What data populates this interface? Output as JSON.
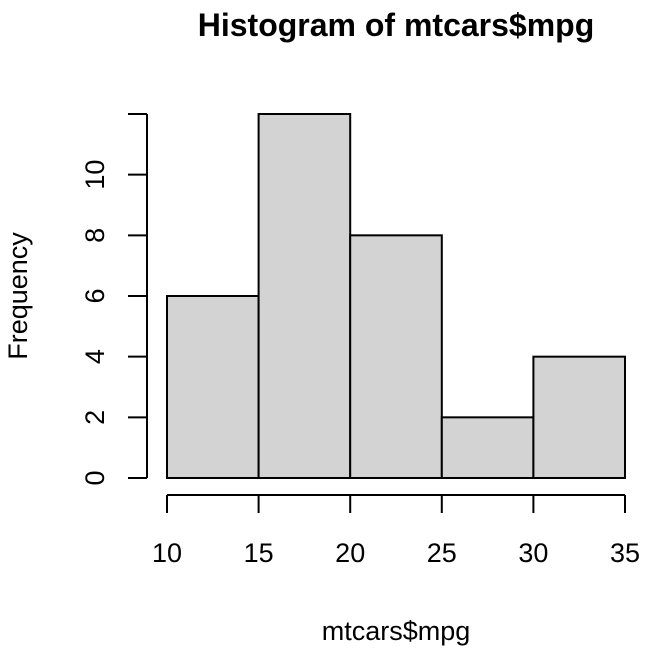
{
  "chart_data": {
    "type": "bar",
    "title": "Histogram of mtcars$mpg",
    "xlabel": "mtcars$mpg",
    "ylabel": "Frequency",
    "bins": [
      {
        "start": 10,
        "end": 15,
        "count": 6
      },
      {
        "start": 15,
        "end": 20,
        "count": 12
      },
      {
        "start": 20,
        "end": 25,
        "count": 8
      },
      {
        "start": 25,
        "end": 30,
        "count": 2
      },
      {
        "start": 30,
        "end": 35,
        "count": 4
      }
    ],
    "xlim": [
      10,
      35
    ],
    "ylim": [
      0,
      12
    ],
    "x_ticks": [
      10,
      15,
      20,
      25,
      30,
      35
    ],
    "y_ticks": [
      0,
      2,
      4,
      6,
      8,
      10
    ],
    "grid": false,
    "bar_fill": "#d3d3d3",
    "bar_stroke": "#000000"
  }
}
